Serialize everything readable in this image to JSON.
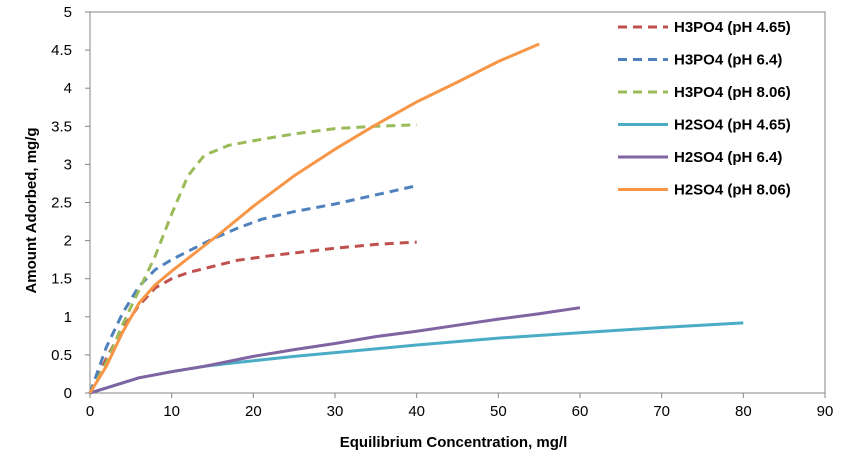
{
  "chart_data": {
    "type": "line",
    "title": "",
    "xlabel": "Equilibrium Concentration, mg/l",
    "ylabel": "Amount Adorbed, mg/g",
    "xlim": [
      0,
      90
    ],
    "ylim": [
      0,
      5
    ],
    "xticks": [
      0,
      10,
      20,
      30,
      40,
      50,
      60,
      70,
      80,
      90
    ],
    "yticks": [
      0,
      0.5,
      1,
      1.5,
      2,
      2.5,
      3,
      3.5,
      4,
      4.5,
      5
    ],
    "xtick_labels": [
      "0",
      "10",
      "20",
      "30",
      "40",
      "50",
      "60",
      "70",
      "80",
      "90"
    ],
    "ytick_labels": [
      "0",
      "0.5",
      "1",
      "1.5",
      "2",
      "2.5",
      "3",
      "3.5",
      "4",
      "4.5",
      "5"
    ],
    "grid": false,
    "legend_position": "right",
    "series": [
      {
        "name": "H3PO4 (pH 4.65)",
        "color": "#C0504D",
        "dash": "dashed",
        "points": [
          [
            0,
            0
          ],
          [
            2,
            0.45
          ],
          [
            4,
            0.85
          ],
          [
            6,
            1.15
          ],
          [
            8,
            1.38
          ],
          [
            10,
            1.5
          ],
          [
            12,
            1.58
          ],
          [
            15,
            1.66
          ],
          [
            18,
            1.74
          ],
          [
            22,
            1.8
          ],
          [
            26,
            1.85
          ],
          [
            30,
            1.9
          ],
          [
            35,
            1.95
          ],
          [
            40,
            1.98
          ]
        ]
      },
      {
        "name": "H3PO4 (pH 6.4)",
        "color": "#4F81BD",
        "dash": "dashed",
        "points": [
          [
            0,
            0
          ],
          [
            2,
            0.6
          ],
          [
            4,
            1.05
          ],
          [
            6,
            1.4
          ],
          [
            8,
            1.62
          ],
          [
            10,
            1.75
          ],
          [
            12,
            1.86
          ],
          [
            15,
            2.02
          ],
          [
            18,
            2.16
          ],
          [
            21,
            2.28
          ],
          [
            25,
            2.38
          ],
          [
            30,
            2.48
          ],
          [
            35,
            2.6
          ],
          [
            40,
            2.72
          ]
        ]
      },
      {
        "name": "H3PO4 (pH 8.06)",
        "color": "#9BBB59",
        "dash": "dashed",
        "points": [
          [
            0,
            0
          ],
          [
            2,
            0.4
          ],
          [
            4,
            0.9
          ],
          [
            6,
            1.35
          ],
          [
            8,
            1.8
          ],
          [
            10,
            2.35
          ],
          [
            12,
            2.85
          ],
          [
            14,
            3.12
          ],
          [
            17,
            3.25
          ],
          [
            21,
            3.33
          ],
          [
            25,
            3.4
          ],
          [
            30,
            3.47
          ],
          [
            35,
            3.5
          ],
          [
            40,
            3.52
          ]
        ]
      },
      {
        "name": "H2SO4 (pH 4.65)",
        "color": "#4BACC6",
        "dash": "solid",
        "points": [
          [
            0,
            0
          ],
          [
            3,
            0.1
          ],
          [
            6,
            0.2
          ],
          [
            10,
            0.28
          ],
          [
            14,
            0.35
          ],
          [
            18,
            0.4
          ],
          [
            25,
            0.48
          ],
          [
            30,
            0.53
          ],
          [
            40,
            0.63
          ],
          [
            50,
            0.72
          ],
          [
            60,
            0.79
          ],
          [
            70,
            0.86
          ],
          [
            80,
            0.92
          ]
        ]
      },
      {
        "name": "H2SO4 (pH 6.4)",
        "color": "#8064A2",
        "dash": "solid",
        "points": [
          [
            0,
            0
          ],
          [
            3,
            0.1
          ],
          [
            6,
            0.2
          ],
          [
            10,
            0.28
          ],
          [
            14,
            0.35
          ],
          [
            20,
            0.48
          ],
          [
            25,
            0.57
          ],
          [
            30,
            0.65
          ],
          [
            35,
            0.74
          ],
          [
            40,
            0.81
          ],
          [
            45,
            0.89
          ],
          [
            50,
            0.97
          ],
          [
            55,
            1.04
          ],
          [
            60,
            1.12
          ]
        ]
      },
      {
        "name": "H2SO4 (pH 8.06)",
        "color": "#F79646",
        "dash": "solid",
        "points": [
          [
            0,
            0
          ],
          [
            2,
            0.35
          ],
          [
            4,
            0.8
          ],
          [
            6,
            1.18
          ],
          [
            8,
            1.42
          ],
          [
            10,
            1.6
          ],
          [
            13,
            1.85
          ],
          [
            16,
            2.1
          ],
          [
            20,
            2.45
          ],
          [
            25,
            2.85
          ],
          [
            30,
            3.2
          ],
          [
            35,
            3.52
          ],
          [
            40,
            3.82
          ],
          [
            45,
            4.08
          ],
          [
            50,
            4.35
          ],
          [
            55,
            4.58
          ]
        ]
      }
    ]
  }
}
